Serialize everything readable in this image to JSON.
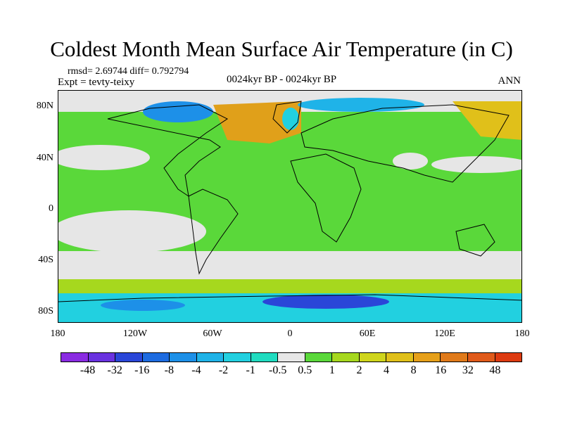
{
  "title": "Coldest Month Mean Surface Air Temperature (in C)",
  "stats_line": "rmsd= 2.69744 diff= 0.792794",
  "experiment_label": "Expt = tevty-teixy",
  "period_label": "0024kyr BP - 0024kyr BP",
  "season_label": "ANN",
  "map": {
    "y_ticks": [
      "80N",
      "40N",
      "0",
      "40S",
      "80S"
    ],
    "x_ticks": [
      "180",
      "120W",
      "60W",
      "0",
      "60E",
      "120E",
      "180"
    ],
    "ocean_color": "#d2d2d2",
    "coastline_color": "#000000"
  },
  "colorbar": {
    "colors": [
      "#8a2be2",
      "#6a32e0",
      "#2a46d8",
      "#1d6be0",
      "#1d90e8",
      "#1fb3e8",
      "#22d0e0",
      "#20dcc0",
      "#e6e6e6",
      "#5ad83a",
      "#a6d81e",
      "#cfd51c",
      "#e0c01a",
      "#e6a01a",
      "#e07a1a",
      "#e05a1a",
      "#dd3a10"
    ],
    "labels": [
      "-48",
      "-32",
      "-16",
      "-8",
      "-4",
      "-2",
      "-1",
      "-0.5",
      "0.5",
      "1",
      "2",
      "4",
      "8",
      "16",
      "32",
      "48"
    ]
  }
}
